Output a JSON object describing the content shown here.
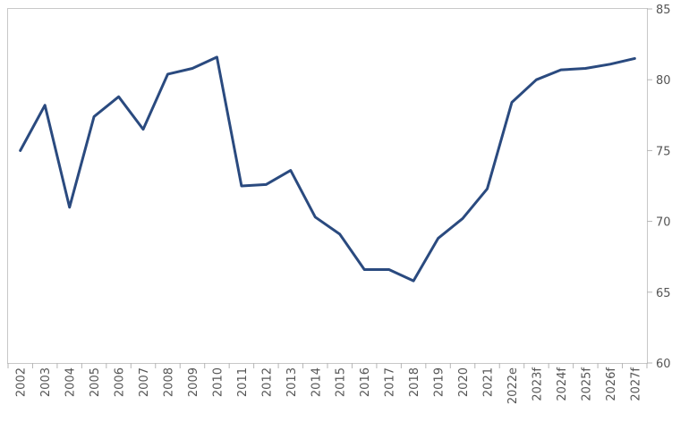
{
  "chart_data": {
    "type": "line",
    "title": "",
    "xlabel": "",
    "ylabel": "",
    "categories": [
      "2002",
      "2003",
      "2004",
      "2005",
      "2006",
      "2007",
      "2008",
      "2009",
      "2010",
      "2011",
      "2012",
      "2013",
      "2014",
      "2015",
      "2016",
      "2017",
      "2018",
      "2019",
      "2020",
      "2021",
      "2022e",
      "2023f",
      "2024f",
      "2025f",
      "2026f",
      "2027f"
    ],
    "series": [
      {
        "values": [
          75.0,
          78.2,
          71.0,
          77.4,
          78.8,
          76.5,
          80.4,
          80.8,
          81.6,
          72.5,
          72.6,
          73.6,
          70.3,
          69.1,
          66.6,
          66.6,
          65.8,
          68.8,
          70.2,
          72.3,
          78.4,
          80.0,
          80.7,
          80.8,
          81.1,
          81.5
        ],
        "color": "#2a4a7f"
      }
    ],
    "ylim": [
      60,
      85
    ],
    "yticks": [
      60,
      65,
      70,
      75,
      80,
      85
    ],
    "y_axis_side": "right",
    "grid": false,
    "legend": "none"
  }
}
